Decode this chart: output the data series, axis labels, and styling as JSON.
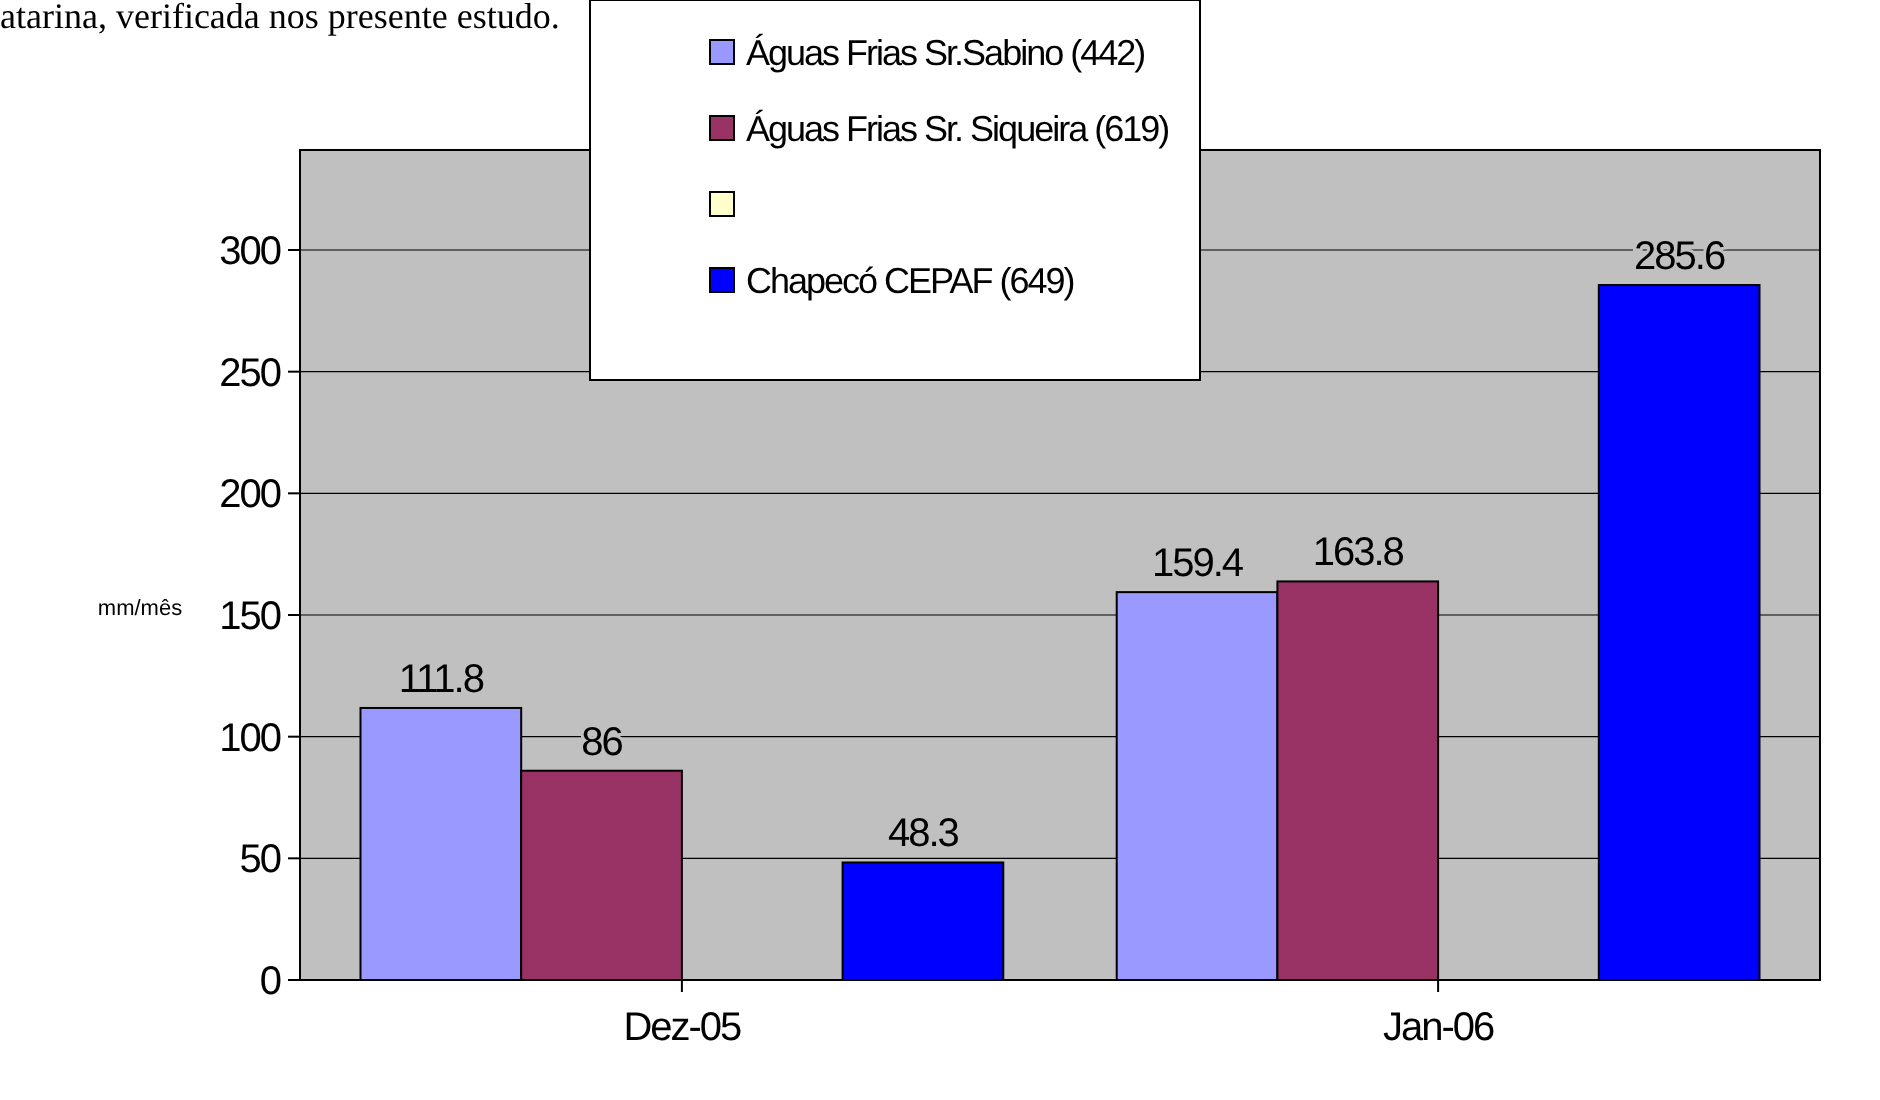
{
  "chart_data": {
    "type": "bar",
    "annotations": [
      "atarina, verificada nos presente estudo."
    ],
    "ylabel": "mm/mês",
    "categories": [
      "Dez-05",
      "Jan-06"
    ],
    "series": [
      {
        "name": "Águas Frias  Sr.Sabino (442)",
        "color": "#9999ff",
        "values": [
          111.8,
          159.4
        ]
      },
      {
        "name": "Águas Frias Sr. Siqueira (619)",
        "color": "#993366",
        "values": [
          86,
          163.8
        ]
      },
      {
        "color": "#ffffcc",
        "values": [
          null,
          null
        ]
      },
      {
        "name": "Chapecó CEPAF (649)",
        "color": "#0000ff",
        "values": [
          48.3,
          285.6
        ]
      }
    ],
    "ylim": [
      0,
      300
    ],
    "yticks": [
      0,
      50,
      100,
      150,
      200,
      250,
      300
    ],
    "grid": "y",
    "legend": "top",
    "data_labels": true
  }
}
